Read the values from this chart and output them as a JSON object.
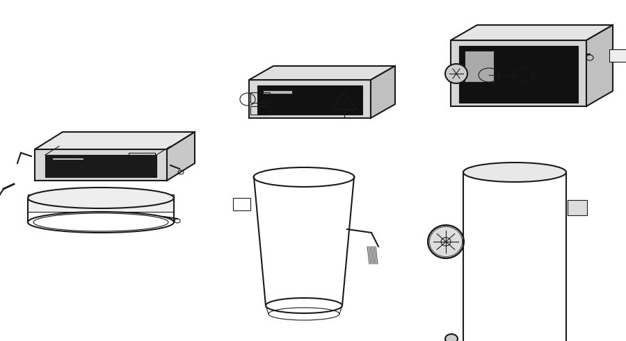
{
  "background_color": "#ffffff",
  "figure_width": 9.0,
  "figure_height": 4.91,
  "dpi": 100,
  "image_pixels": null
}
